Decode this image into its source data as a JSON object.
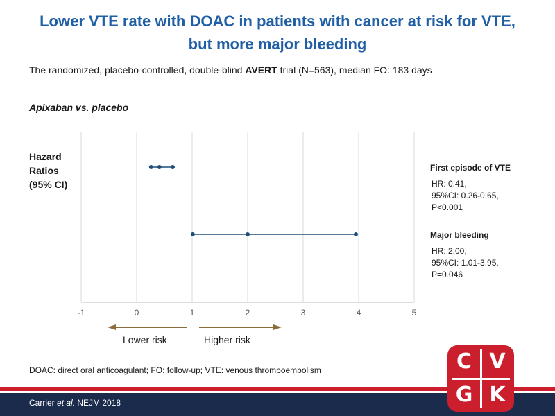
{
  "header": {
    "title_line1": "Lower VTE rate with DOAC in patients with cancer at risk for VTE,",
    "title_line2": "but more major bleeding",
    "subtitle_pre": "The randomized, placebo-controlled, double-blind ",
    "subtitle_bold": "AVERT",
    "subtitle_post": " trial (N=563), median FO: 183 days"
  },
  "section_label": "Apixaban vs. placebo",
  "y_label_lines": [
    "Hazard",
    "Ratios",
    "(95% CI)"
  ],
  "chart_data": {
    "type": "scatter",
    "title": "",
    "xlabel": "",
    "ylabel": "Hazard Ratios (95% CI)",
    "xlim": [
      -1,
      5
    ],
    "x_ticks": [
      -1,
      0,
      1,
      2,
      3,
      4,
      5
    ],
    "grid": true,
    "series": [
      {
        "name": "First episode of VTE",
        "hr": 0.41,
        "ci": [
          0.26,
          0.65
        ],
        "annotation": [
          "HR: 0.41,",
          "95%CI: 0.26-0.65,",
          "P<0.001"
        ]
      },
      {
        "name": "Major bleeding",
        "hr": 2.0,
        "ci": [
          1.01,
          3.95
        ],
        "annotation": [
          "HR: 2.00,",
          "95%CI: 1.01-3.95,",
          "P=0.046"
        ]
      }
    ],
    "colors": {
      "series": "#1f4e79",
      "grid": "#d9d9d9",
      "arrow": "#8b6d3a"
    }
  },
  "risk_labels": {
    "lower": "Lower risk",
    "higher": "Higher risk"
  },
  "footnote": "DOAC: direct oral anticoagulant;  FO: follow-up;  VTE: venous thromboembolism",
  "citation": {
    "pre": "Carrier ",
    "italic": "et al.",
    "post": " NEJM 2018"
  },
  "logo": {
    "letters": [
      "C",
      "V",
      "G",
      "K"
    ],
    "color": "#cc1f2d"
  }
}
